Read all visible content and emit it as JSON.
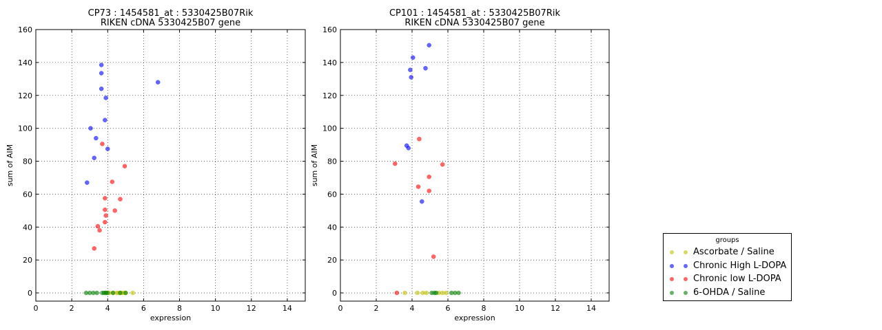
{
  "chart_data": [
    {
      "type": "scatter",
      "title": "CP73 : 1454581_at : 5330425B07Rik\nRIKEN cDNA 5330425B07 gene",
      "xlabel": "expression",
      "ylabel": "sum of AIM",
      "xlim": [
        0,
        15
      ],
      "ylim": [
        -5,
        160
      ],
      "xticks": [
        0,
        2,
        4,
        6,
        8,
        10,
        12,
        14
      ],
      "yticks": [
        0,
        20,
        40,
        60,
        80,
        100,
        120,
        140,
        160
      ],
      "grid": true,
      "series": [
        {
          "name": "Ascorbate / Saline",
          "color": "#bfbf00",
          "points": [
            [
              4.5,
              0
            ],
            [
              4.7,
              0
            ],
            [
              4.8,
              0
            ],
            [
              4.9,
              0
            ],
            [
              5.0,
              0
            ],
            [
              4.3,
              0
            ],
            [
              4.6,
              0
            ],
            [
              5.4,
              0
            ],
            [
              4.1,
              0
            ],
            [
              3.9,
              0
            ]
          ]
        },
        {
          "name": "Chronic High L-DOPA",
          "color": "#0000ff",
          "points": [
            [
              3.65,
              138.5
            ],
            [
              3.65,
              133.5
            ],
            [
              3.65,
              124
            ],
            [
              3.9,
              118.5
            ],
            [
              6.8,
              128
            ],
            [
              3.85,
              105
            ],
            [
              3.05,
              100
            ],
            [
              3.35,
              94
            ],
            [
              4.0,
              87.5
            ],
            [
              3.25,
              82
            ],
            [
              2.85,
              67
            ]
          ]
        },
        {
          "name": "Chronic low L-DOPA",
          "color": "#ff0000",
          "points": [
            [
              3.7,
              90.5
            ],
            [
              4.95,
              77
            ],
            [
              4.25,
              67.5
            ],
            [
              3.85,
              57.5
            ],
            [
              4.7,
              57
            ],
            [
              3.85,
              50.5
            ],
            [
              4.4,
              50
            ],
            [
              3.9,
              47
            ],
            [
              3.85,
              43
            ],
            [
              3.45,
              40.5
            ],
            [
              3.55,
              38
            ],
            [
              3.25,
              27
            ]
          ]
        },
        {
          "name": "6-OHDA / Saline",
          "color": "#008000",
          "points": [
            [
              2.8,
              0
            ],
            [
              3.0,
              0
            ],
            [
              3.2,
              0
            ],
            [
              3.4,
              0
            ],
            [
              3.7,
              0
            ],
            [
              3.8,
              0
            ],
            [
              3.9,
              0
            ],
            [
              4.0,
              0
            ],
            [
              4.3,
              0
            ],
            [
              4.7,
              0
            ],
            [
              5.0,
              0
            ]
          ]
        }
      ]
    },
    {
      "type": "scatter",
      "title": "CP101 : 1454581_at : 5330425B07Rik\nRIKEN cDNA 5330425B07 gene",
      "xlabel": "expression",
      "ylabel": "sum of AIM",
      "xlim": [
        0,
        15
      ],
      "ylim": [
        -5,
        160
      ],
      "xticks": [
        0,
        2,
        4,
        6,
        8,
        10,
        12,
        14
      ],
      "yticks": [
        0,
        20,
        40,
        60,
        80,
        100,
        120,
        140,
        160
      ],
      "grid": true,
      "series": [
        {
          "name": "Ascorbate / Saline",
          "color": "#bfbf00",
          "points": [
            [
              3.6,
              0
            ],
            [
              4.3,
              0
            ],
            [
              4.6,
              0
            ],
            [
              4.8,
              0
            ],
            [
              5.5,
              0
            ],
            [
              5.7,
              0
            ],
            [
              5.9,
              0
            ]
          ]
        },
        {
          "name": "Chronic High L-DOPA",
          "color": "#0000ff",
          "points": [
            [
              4.95,
              150.5
            ],
            [
              4.05,
              143
            ],
            [
              3.9,
              135.5
            ],
            [
              4.75,
              136.5
            ],
            [
              3.95,
              131
            ],
            [
              3.7,
              89.5
            ],
            [
              3.8,
              88
            ],
            [
              4.55,
              55.5
            ]
          ]
        },
        {
          "name": "Chronic low L-DOPA",
          "color": "#ff0000",
          "points": [
            [
              4.4,
              93.5
            ],
            [
              3.05,
              78.5
            ],
            [
              5.7,
              78
            ],
            [
              4.95,
              70.5
            ],
            [
              4.35,
              64.5
            ],
            [
              4.95,
              62
            ],
            [
              5.2,
              22
            ],
            [
              3.15,
              0
            ]
          ]
        },
        {
          "name": "6-OHDA / Saline",
          "color": "#008000",
          "points": [
            [
              5.1,
              0
            ],
            [
              5.25,
              0
            ],
            [
              5.35,
              0
            ],
            [
              6.2,
              0
            ],
            [
              6.4,
              0
            ],
            [
              6.6,
              0
            ]
          ]
        }
      ]
    }
  ],
  "legend": {
    "title": "groups",
    "position": "lower-right",
    "items": [
      {
        "label": "Ascorbate / Saline",
        "color": "#bfbf00"
      },
      {
        "label": "Chronic High L-DOPA",
        "color": "#0000ff"
      },
      {
        "label": "Chronic low L-DOPA",
        "color": "#ff0000"
      },
      {
        "label": "6-OHDA / Saline",
        "color": "#008000"
      }
    ]
  }
}
